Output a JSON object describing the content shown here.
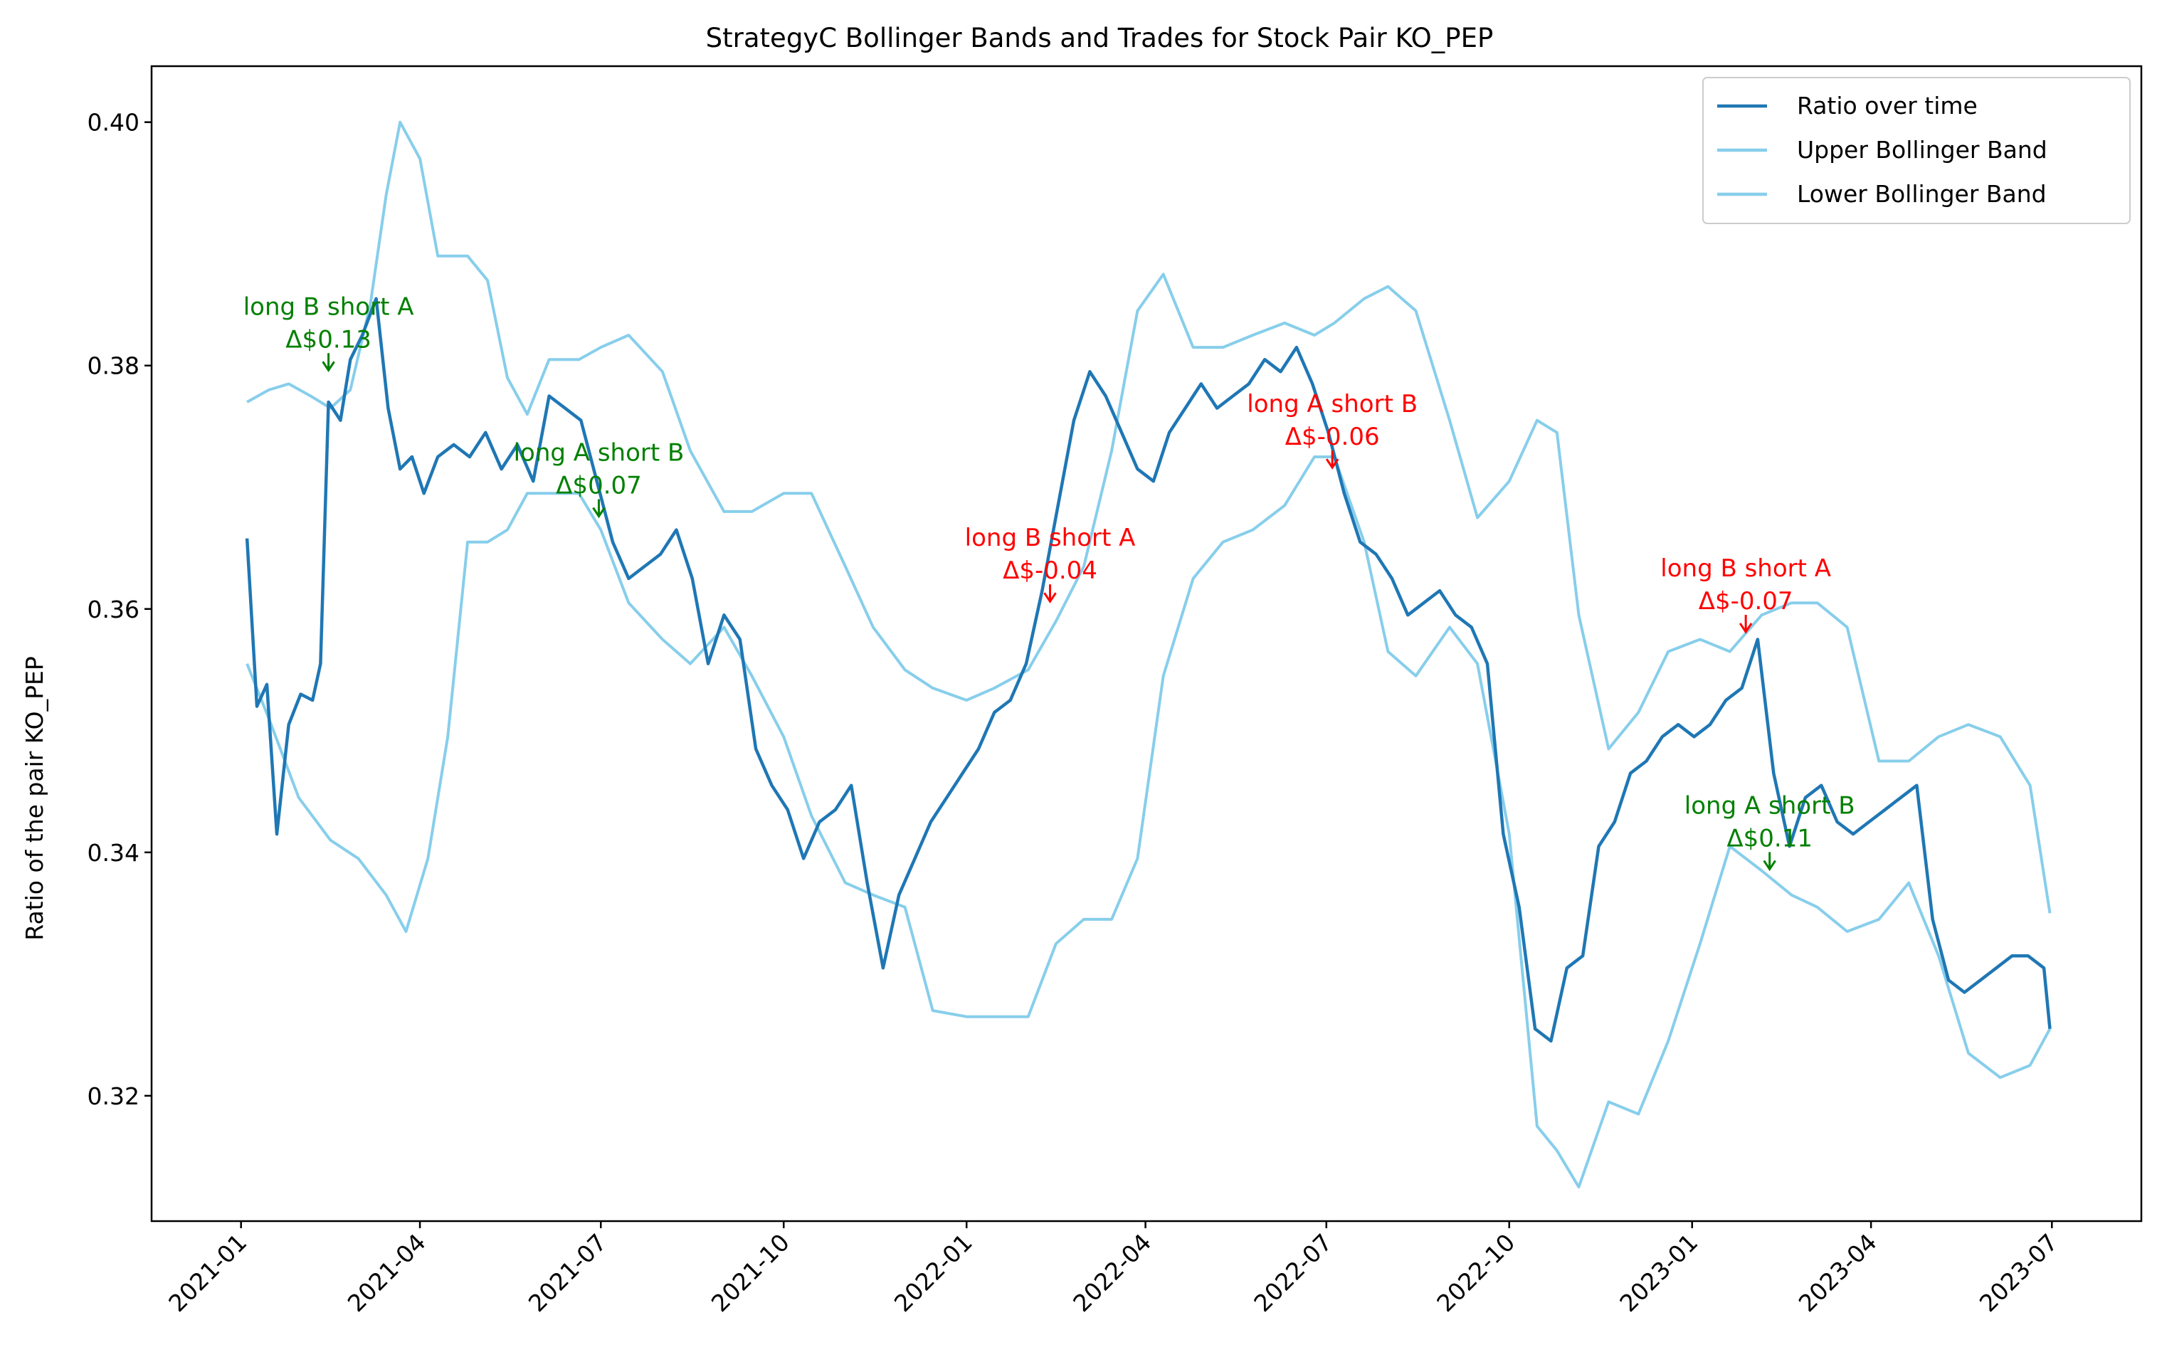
{
  "chart_data": {
    "type": "line",
    "title": "StrategyC Bollinger Bands and Trades for Stock Pair KO_PEP",
    "xlabel": "",
    "ylabel": "Ratio of the pair KO_PEP",
    "xlim": [
      "2020-11-17",
      "2023-08-15"
    ],
    "ylim": [
      0.3097,
      0.4046
    ],
    "yticks": [
      0.32,
      0.34,
      0.36,
      0.38,
      0.4
    ],
    "ytick_labels": [
      "0.32",
      "0.34",
      "0.36",
      "0.38",
      "0.40"
    ],
    "xticks": [
      "2021-01-01",
      "2021-04-01",
      "2021-07-01",
      "2021-10-01",
      "2022-01-01",
      "2022-04-01",
      "2022-07-01",
      "2022-10-01",
      "2023-01-01",
      "2023-04-01",
      "2023-07-01"
    ],
    "xtick_labels": [
      "2021-01",
      "2021-04",
      "2021-07",
      "2021-10",
      "2022-01",
      "2022-04",
      "2022-07",
      "2022-10",
      "2023-01",
      "2023-04",
      "2023-07"
    ],
    "grid": false,
    "legend_position": "top-right",
    "colors": {
      "ratio": "#1f77b4",
      "bands": "#87ceeb",
      "win": "#008000",
      "loss": "#ff0000"
    },
    "series": [
      {
        "name": "Ratio over time",
        "x": [
          "2021-01-04",
          "2021-01-09",
          "2021-01-14",
          "2021-01-19",
          "2021-01-25",
          "2021-01-31",
          "2021-02-06",
          "2021-02-10",
          "2021-02-14",
          "2021-02-20",
          "2021-02-25",
          "2021-03-03",
          "2021-03-10",
          "2021-03-16",
          "2021-03-22",
          "2021-03-28",
          "2021-04-03",
          "2021-04-10",
          "2021-04-18",
          "2021-04-26",
          "2021-05-04",
          "2021-05-12",
          "2021-05-20",
          "2021-05-28",
          "2021-06-05",
          "2021-06-13",
          "2021-06-21",
          "2021-06-29",
          "2021-07-07",
          "2021-07-15",
          "2021-07-23",
          "2021-07-31",
          "2021-08-08",
          "2021-08-16",
          "2021-08-24",
          "2021-09-01",
          "2021-09-09",
          "2021-09-17",
          "2021-09-25",
          "2021-10-03",
          "2021-10-11",
          "2021-10-19",
          "2021-10-27",
          "2021-11-04",
          "2021-11-12",
          "2021-11-20",
          "2021-11-28",
          "2021-12-06",
          "2021-12-14",
          "2021-12-22",
          "2021-12-30",
          "2022-01-07",
          "2022-01-15",
          "2022-01-23",
          "2022-01-31",
          "2022-02-08",
          "2022-02-16",
          "2022-02-24",
          "2022-03-04",
          "2022-03-12",
          "2022-03-20",
          "2022-03-28",
          "2022-04-05",
          "2022-04-13",
          "2022-04-21",
          "2022-04-29",
          "2022-05-07",
          "2022-05-15",
          "2022-05-23",
          "2022-05-31",
          "2022-06-08",
          "2022-06-16",
          "2022-06-24",
          "2022-07-02",
          "2022-07-10",
          "2022-07-18",
          "2022-07-26",
          "2022-08-03",
          "2022-08-11",
          "2022-08-19",
          "2022-08-27",
          "2022-09-04",
          "2022-09-12",
          "2022-09-20",
          "2022-09-28",
          "2022-10-06",
          "2022-10-14",
          "2022-10-22",
          "2022-10-30",
          "2022-11-07",
          "2022-11-15",
          "2022-11-23",
          "2022-12-01",
          "2022-12-09",
          "2022-12-17",
          "2022-12-25",
          "2023-01-02",
          "2023-01-10",
          "2023-01-18",
          "2023-01-26",
          "2023-02-03",
          "2023-02-11",
          "2023-02-19",
          "2023-02-27",
          "2023-03-07",
          "2023-03-15",
          "2023-03-23",
          "2023-03-31",
          "2023-04-08",
          "2023-04-16",
          "2023-04-24",
          "2023-05-02",
          "2023-05-10",
          "2023-05-18",
          "2023-05-26",
          "2023-06-03",
          "2023-06-11",
          "2023-06-19",
          "2023-06-27",
          "2023-06-30"
        ],
        "values": [
          0.3658,
          0.352,
          0.3538,
          0.3415,
          0.3505,
          0.353,
          0.3525,
          0.3555,
          0.377,
          0.3755,
          0.3805,
          0.3825,
          0.3855,
          0.3765,
          0.3715,
          0.3725,
          0.3695,
          0.3725,
          0.3735,
          0.3725,
          0.3745,
          0.3715,
          0.3735,
          0.3705,
          0.3775,
          0.3765,
          0.3755,
          0.3705,
          0.3655,
          0.3625,
          0.3635,
          0.3645,
          0.3665,
          0.3625,
          0.3555,
          0.3595,
          0.3575,
          0.3485,
          0.3455,
          0.3435,
          0.3395,
          0.3425,
          0.3435,
          0.3455,
          0.3375,
          0.3305,
          0.3365,
          0.3395,
          0.3425,
          0.3445,
          0.3465,
          0.3485,
          0.3515,
          0.3525,
          0.3555,
          0.3615,
          0.3685,
          0.3755,
          0.3795,
          0.3775,
          0.3745,
          0.3715,
          0.3705,
          0.3745,
          0.3765,
          0.3785,
          0.3765,
          0.3775,
          0.3785,
          0.3805,
          0.3795,
          0.3815,
          0.3785,
          0.3745,
          0.3695,
          0.3655,
          0.3645,
          0.3625,
          0.3595,
          0.3605,
          0.3615,
          0.3595,
          0.3585,
          0.3555,
          0.3415,
          0.3355,
          0.3255,
          0.3245,
          0.3305,
          0.3315,
          0.3405,
          0.3425,
          0.3465,
          0.3475,
          0.3495,
          0.3505,
          0.3495,
          0.3505,
          0.3525,
          0.3535,
          0.3575,
          0.3465,
          0.3405,
          0.3445,
          0.3455,
          0.3425,
          0.3415,
          0.3425,
          0.3435,
          0.3445,
          0.3455,
          0.3345,
          0.3295,
          0.3285,
          0.3295,
          0.3305,
          0.3315,
          0.3315,
          0.3305,
          0.3255
        ]
      },
      {
        "name": "Upper Bollinger Band",
        "x": [
          "2021-01-04",
          "2021-01-15",
          "2021-01-25",
          "2021-02-05",
          "2021-02-15",
          "2021-02-25",
          "2021-03-07",
          "2021-03-15",
          "2021-03-22",
          "2021-04-01",
          "2021-04-10",
          "2021-04-25",
          "2021-05-05",
          "2021-05-15",
          "2021-05-25",
          "2021-06-05",
          "2021-06-20",
          "2021-07-01",
          "2021-07-15",
          "2021-08-01",
          "2021-08-15",
          "2021-09-01",
          "2021-09-15",
          "2021-10-01",
          "2021-10-15",
          "2021-11-01",
          "2021-11-15",
          "2021-12-01",
          "2021-12-15",
          "2022-01-01",
          "2022-01-15",
          "2022-02-01",
          "2022-02-15",
          "2022-03-01",
          "2022-03-15",
          "2022-03-28",
          "2022-04-10",
          "2022-04-25",
          "2022-05-10",
          "2022-05-25",
          "2022-06-10",
          "2022-06-25",
          "2022-07-05",
          "2022-07-20",
          "2022-08-01",
          "2022-08-15",
          "2022-09-01",
          "2022-09-15",
          "2022-10-01",
          "2022-10-15",
          "2022-10-25",
          "2022-11-05",
          "2022-11-20",
          "2022-12-05",
          "2022-12-20",
          "2023-01-05",
          "2023-01-20",
          "2023-02-05",
          "2023-02-20",
          "2023-03-05",
          "2023-03-20",
          "2023-04-05",
          "2023-04-20",
          "2023-05-05",
          "2023-05-20",
          "2023-06-05",
          "2023-06-20",
          "2023-06-30"
        ],
        "values": [
          0.377,
          0.378,
          0.3785,
          0.3775,
          0.3765,
          0.378,
          0.385,
          0.394,
          0.4,
          0.397,
          0.389,
          0.389,
          0.387,
          0.379,
          0.376,
          0.3805,
          0.3805,
          0.3815,
          0.3825,
          0.3795,
          0.373,
          0.368,
          0.368,
          0.3695,
          0.3695,
          0.3635,
          0.3585,
          0.355,
          0.3535,
          0.3525,
          0.3535,
          0.355,
          0.359,
          0.3635,
          0.373,
          0.3845,
          0.3875,
          0.3815,
          0.3815,
          0.3825,
          0.3835,
          0.3825,
          0.3835,
          0.3855,
          0.3865,
          0.3845,
          0.3755,
          0.3675,
          0.3705,
          0.3755,
          0.3745,
          0.3595,
          0.3485,
          0.3515,
          0.3565,
          0.3575,
          0.3565,
          0.3595,
          0.3605,
          0.3605,
          0.3585,
          0.3475,
          0.3475,
          0.3495,
          0.3505,
          0.3495,
          0.3455,
          0.335
        ]
      },
      {
        "name": "Lower Bollinger Band",
        "x": [
          "2021-01-04",
          "2021-01-15",
          "2021-01-30",
          "2021-02-15",
          "2021-03-01",
          "2021-03-15",
          "2021-03-25",
          "2021-04-05",
          "2021-04-15",
          "2021-04-25",
          "2021-05-05",
          "2021-05-15",
          "2021-05-25",
          "2021-06-05",
          "2021-06-20",
          "2021-07-01",
          "2021-07-15",
          "2021-08-01",
          "2021-08-15",
          "2021-09-01",
          "2021-09-15",
          "2021-10-01",
          "2021-10-15",
          "2021-11-01",
          "2021-11-15",
          "2021-12-01",
          "2021-12-15",
          "2022-01-01",
          "2022-01-15",
          "2022-02-01",
          "2022-02-15",
          "2022-03-01",
          "2022-03-15",
          "2022-03-28",
          "2022-04-10",
          "2022-04-25",
          "2022-05-10",
          "2022-05-25",
          "2022-06-10",
          "2022-06-25",
          "2022-07-05",
          "2022-07-20",
          "2022-08-01",
          "2022-08-15",
          "2022-09-01",
          "2022-09-15",
          "2022-10-01",
          "2022-10-15",
          "2022-10-25",
          "2022-11-05",
          "2022-11-20",
          "2022-12-05",
          "2022-12-20",
          "2023-01-05",
          "2023-01-20",
          "2023-02-05",
          "2023-02-20",
          "2023-03-05",
          "2023-03-20",
          "2023-04-05",
          "2023-04-20",
          "2023-05-05",
          "2023-05-20",
          "2023-06-05",
          "2023-06-20",
          "2023-06-30"
        ],
        "values": [
          0.3555,
          0.351,
          0.3445,
          0.341,
          0.3395,
          0.3365,
          0.3335,
          0.3395,
          0.3495,
          0.3655,
          0.3655,
          0.3665,
          0.3695,
          0.3695,
          0.3695,
          0.3665,
          0.3605,
          0.3575,
          0.3555,
          0.3585,
          0.3545,
          0.3495,
          0.343,
          0.3375,
          0.3365,
          0.3355,
          0.327,
          0.3265,
          0.3265,
          0.3265,
          0.3325,
          0.3345,
          0.3345,
          0.3395,
          0.3545,
          0.3625,
          0.3655,
          0.3665,
          0.3685,
          0.3725,
          0.3725,
          0.3655,
          0.3565,
          0.3545,
          0.3585,
          0.3555,
          0.3415,
          0.3175,
          0.3155,
          0.3125,
          0.3195,
          0.3185,
          0.3245,
          0.3325,
          0.3405,
          0.3385,
          0.3365,
          0.3355,
          0.3335,
          0.3345,
          0.3375,
          0.3315,
          0.3235,
          0.3215,
          0.3225,
          0.3255
        ]
      }
    ],
    "annotations": [
      {
        "line1": "long B short A",
        "line2": "Δ$0.13",
        "x": "2021-02-14",
        "y": 0.3795,
        "outcome": "win"
      },
      {
        "line1": "long A short B",
        "line2": "Δ$0.07",
        "x": "2021-06-30",
        "y": 0.3675,
        "outcome": "win"
      },
      {
        "line1": "long B short A",
        "line2": "Δ$-0.04",
        "x": "2022-02-12",
        "y": 0.3605,
        "outcome": "loss"
      },
      {
        "line1": "long A short B",
        "line2": "Δ$-0.06",
        "x": "2022-07-04",
        "y": 0.3715,
        "outcome": "loss"
      },
      {
        "line1": "long B short A",
        "line2": "Δ$-0.07",
        "x": "2023-01-28",
        "y": 0.358,
        "outcome": "loss"
      },
      {
        "line1": "long A short B",
        "line2": "Δ$0.11",
        "x": "2023-02-09",
        "y": 0.3385,
        "outcome": "win"
      }
    ]
  }
}
